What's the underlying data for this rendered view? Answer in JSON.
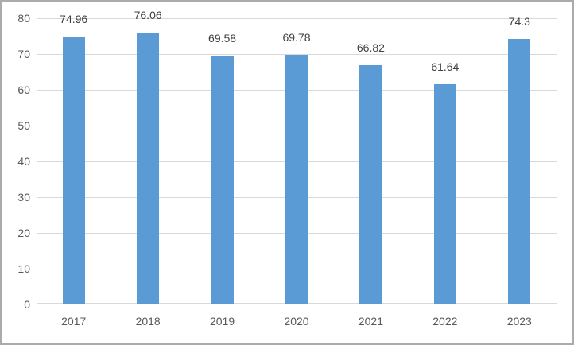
{
  "chart_data": {
    "type": "bar",
    "categories": [
      "2017",
      "2018",
      "2019",
      "2020",
      "2021",
      "2022",
      "2023"
    ],
    "values": [
      74.96,
      76.06,
      69.58,
      69.78,
      66.82,
      61.64,
      74.3
    ],
    "data_labels": [
      "74.96",
      "76.06",
      "69.58",
      "69.78",
      "66.82",
      "61.64",
      "74.3"
    ],
    "title": "",
    "xlabel": "",
    "ylabel": "",
    "ylim": [
      0,
      80
    ],
    "yticks": [
      0,
      10,
      20,
      30,
      40,
      50,
      60,
      70,
      80
    ],
    "grid": true,
    "legend": false
  },
  "colors": {
    "bar": "#5B9BD5",
    "gridline": "#D9D9D9",
    "axis_line": "#D9D9D9",
    "axis_label_text": "#595959",
    "data_label_text": "#404040",
    "border": "#ABABAB",
    "background": "#FFFFFF"
  }
}
